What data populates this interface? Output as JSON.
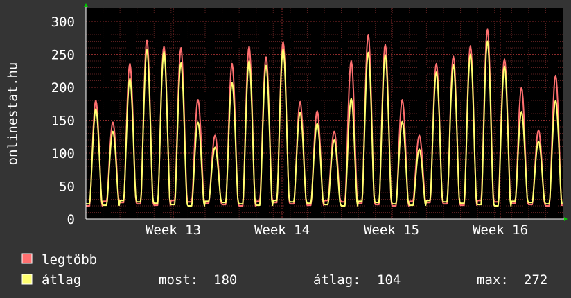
{
  "chart_data": {
    "type": "line",
    "ylabel": "onlinestat.hu",
    "ylim": [
      0,
      320
    ],
    "y_ticks": [
      "0",
      "50",
      "100",
      "150",
      "200",
      "250",
      "300"
    ],
    "x_ticks": [
      "Week 13",
      "Week 14",
      "Week 15",
      "Week 16"
    ],
    "grid": true,
    "legend_placement": "bottom-left",
    "series": [
      {
        "name": "legtöbb",
        "color": "#ff7070",
        "daily_peaks": [
          180,
          147,
          236,
          272,
          262,
          260,
          181,
          127,
          236,
          262,
          246,
          269,
          178,
          164,
          133,
          240,
          280,
          265,
          181,
          127,
          236,
          247,
          263,
          288,
          243,
          200,
          135,
          218
        ]
      },
      {
        "name": "átlag",
        "color": "#ffff70",
        "daily_peaks": [
          167,
          133,
          213,
          257,
          254,
          237,
          147,
          109,
          207,
          240,
          233,
          258,
          162,
          145,
          120,
          183,
          253,
          249,
          148,
          106,
          223,
          234,
          250,
          270,
          232,
          163,
          118,
          180
        ]
      }
    ],
    "stats": {
      "most_label": "most:",
      "most_value": "180",
      "atlag_label": "átlag:",
      "atlag_value": "104",
      "max_label": "max:",
      "max_value": "272"
    }
  }
}
